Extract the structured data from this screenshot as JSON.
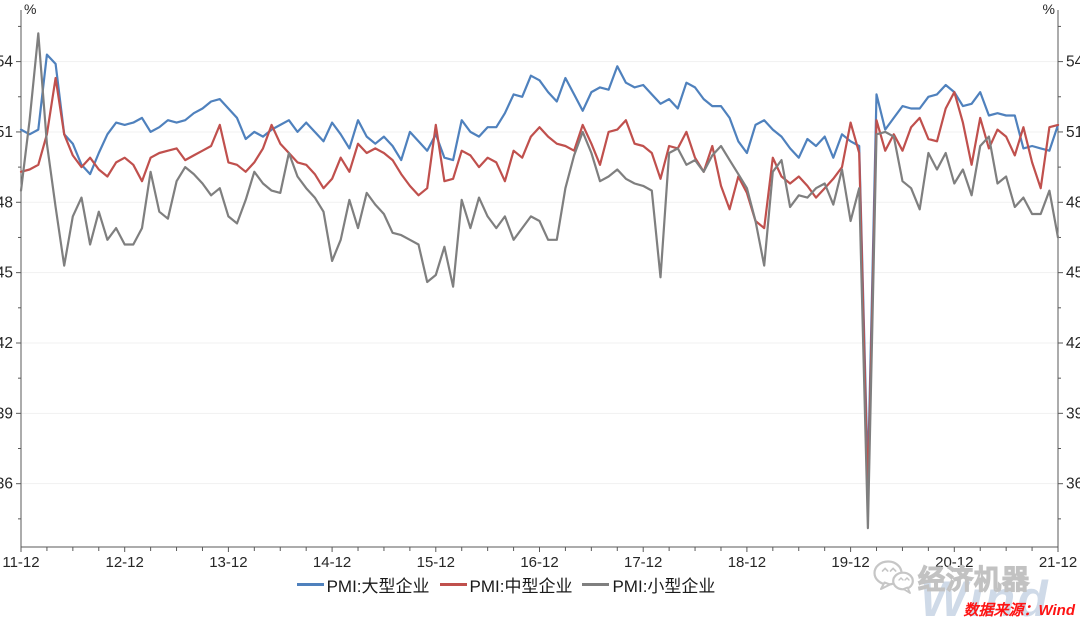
{
  "chart_data": {
    "type": "line",
    "title": "",
    "y_axis_unit": "%",
    "ylim": [
      33.3,
      56.2
    ],
    "y_ticks": [
      36,
      39,
      42,
      45,
      48,
      51,
      54
    ],
    "y_tick_labels": [
      "36",
      "39",
      "42",
      "45",
      "48",
      "51",
      "54"
    ],
    "x_tick_labels": [
      "11-12",
      "12-12",
      "13-12",
      "14-12",
      "15-12",
      "16-12",
      "17-12",
      "18-12",
      "19-12",
      "20-12",
      "21-12"
    ],
    "x_start": "2011-12",
    "x_end": "2021-12",
    "frequency": "monthly",
    "grid": "horizontal-faint",
    "legend_position": "bottom",
    "axis_color": "#595959",
    "grid_color": "#f1f1f1",
    "series": [
      {
        "name": "PMI:大型企业",
        "color": "#4f81bd",
        "values": [
          51.1,
          50.9,
          51.1,
          54.3,
          53.9,
          50.9,
          50.5,
          49.6,
          49.2,
          50.1,
          50.9,
          51.4,
          51.3,
          51.4,
          51.6,
          51.0,
          51.2,
          51.5,
          51.4,
          51.5,
          51.8,
          52.0,
          52.3,
          52.4,
          52.0,
          51.6,
          50.7,
          51.0,
          50.8,
          51.1,
          51.3,
          51.5,
          51.0,
          51.4,
          51.0,
          50.6,
          51.4,
          50.9,
          50.3,
          51.5,
          50.8,
          50.5,
          50.8,
          50.4,
          49.8,
          51.0,
          50.6,
          50.2,
          50.9,
          49.9,
          49.8,
          51.5,
          51.0,
          50.8,
          51.2,
          51.2,
          51.8,
          52.6,
          52.5,
          53.4,
          53.2,
          52.7,
          52.3,
          53.3,
          52.6,
          51.9,
          52.7,
          52.9,
          52.8,
          53.8,
          53.1,
          52.9,
          53.0,
          52.6,
          52.2,
          52.4,
          52.0,
          53.1,
          52.9,
          52.4,
          52.1,
          52.1,
          51.6,
          50.6,
          50.1,
          51.3,
          51.5,
          51.1,
          50.8,
          50.3,
          49.9,
          50.7,
          50.4,
          50.8,
          49.9,
          50.9,
          50.6,
          50.4,
          36.3,
          52.6,
          51.1,
          51.6,
          52.1,
          52.0,
          52.0,
          52.5,
          52.6,
          53.0,
          52.7,
          52.1,
          52.2,
          52.7,
          51.7,
          51.8,
          51.7,
          51.7,
          50.3,
          50.4,
          50.3,
          50.2,
          51.3
        ]
      },
      {
        "name": "PMI:中型企业",
        "color": "#c0504d",
        "values": [
          49.3,
          49.4,
          49.6,
          50.9,
          53.3,
          50.9,
          50.0,
          49.5,
          49.9,
          49.4,
          49.1,
          49.7,
          49.9,
          49.6,
          48.9,
          49.9,
          50.1,
          50.2,
          50.3,
          49.8,
          50.0,
          50.2,
          50.4,
          51.3,
          49.7,
          49.6,
          49.3,
          49.7,
          50.3,
          51.3,
          50.5,
          50.1,
          49.7,
          49.6,
          49.2,
          48.6,
          49.0,
          49.9,
          49.3,
          50.5,
          50.1,
          50.3,
          50.1,
          49.8,
          49.2,
          48.7,
          48.3,
          48.6,
          51.3,
          48.9,
          49.0,
          50.2,
          50.0,
          49.5,
          49.9,
          49.7,
          48.9,
          50.2,
          49.9,
          50.8,
          51.2,
          50.8,
          50.5,
          50.4,
          50.2,
          51.3,
          50.5,
          49.6,
          51.0,
          51.1,
          51.5,
          50.5,
          50.4,
          50.1,
          49.0,
          50.4,
          50.3,
          51.0,
          49.9,
          49.3,
          50.4,
          48.7,
          47.7,
          49.1,
          48.4,
          47.2,
          46.9,
          49.9,
          49.1,
          48.8,
          49.1,
          48.7,
          48.2,
          48.6,
          49.0,
          49.5,
          51.4,
          50.1,
          35.5,
          51.5,
          50.2,
          50.9,
          50.2,
          51.2,
          51.6,
          50.7,
          50.6,
          52.0,
          52.7,
          51.4,
          49.6,
          51.6,
          50.3,
          51.1,
          50.8,
          50.0,
          51.2,
          49.7,
          48.6,
          51.2,
          51.3
        ]
      },
      {
        "name": "PMI:小型企业",
        "color": "#7f7f7f",
        "values": [
          48.5,
          51.5,
          55.2,
          50.5,
          47.8,
          45.3,
          47.4,
          48.2,
          46.2,
          47.6,
          46.4,
          46.9,
          46.2,
          46.2,
          46.9,
          49.3,
          47.6,
          47.3,
          48.9,
          49.5,
          49.2,
          48.8,
          48.3,
          48.6,
          47.4,
          47.1,
          48.1,
          49.3,
          48.8,
          48.5,
          48.4,
          50.1,
          49.1,
          48.6,
          48.2,
          47.6,
          45.5,
          46.4,
          48.1,
          46.9,
          48.4,
          47.9,
          47.5,
          46.7,
          46.6,
          46.4,
          46.2,
          44.6,
          44.9,
          46.1,
          44.4,
          48.1,
          46.9,
          48.2,
          47.4,
          46.9,
          47.4,
          46.4,
          46.9,
          47.4,
          47.2,
          46.4,
          46.4,
          48.6,
          50.0,
          51.0,
          50.1,
          48.9,
          49.1,
          49.4,
          49.0,
          48.8,
          48.7,
          48.5,
          44.8,
          50.1,
          50.3,
          49.6,
          49.8,
          49.3,
          50.0,
          50.4,
          49.8,
          49.2,
          48.6,
          47.2,
          45.3,
          49.3,
          49.8,
          47.8,
          48.3,
          48.2,
          48.6,
          48.8,
          47.9,
          49.4,
          47.2,
          48.6,
          34.1,
          50.9,
          51.0,
          50.8,
          48.9,
          48.6,
          47.7,
          50.1,
          49.4,
          50.1,
          48.8,
          49.4,
          48.3,
          50.4,
          50.8,
          48.8,
          49.1,
          47.8,
          48.2,
          47.5,
          47.5,
          48.5,
          46.5
        ]
      }
    ]
  },
  "branding": {
    "logo_text": "经济机器",
    "watermark_text": "Wind"
  },
  "footer": {
    "source_label": "数据来源：Wind",
    "source_color": "#fe1414"
  }
}
